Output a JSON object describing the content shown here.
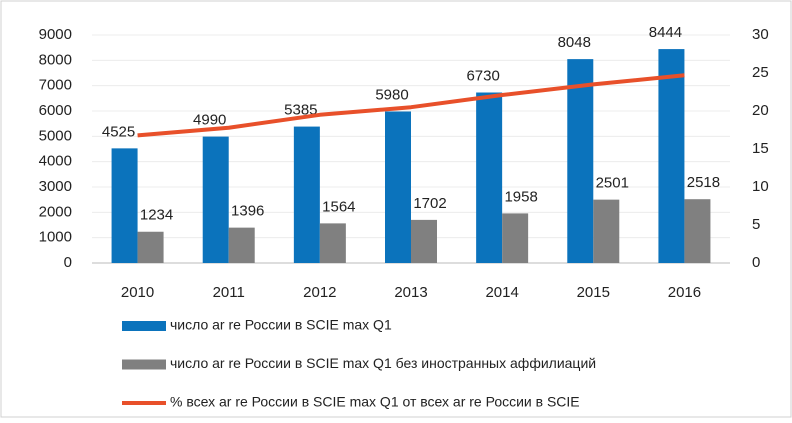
{
  "chart_data": {
    "type": "bar",
    "categories": [
      "2010",
      "2011",
      "2012",
      "2013",
      "2014",
      "2015",
      "2016"
    ],
    "series": [
      {
        "name": "число ar re России в SCIE max Q1",
        "color": "#0b73bc",
        "values": [
          4525,
          4990,
          5385,
          5980,
          6730,
          8048,
          8444
        ]
      },
      {
        "name": "число ar re России в SCIE max Q1 без иностранных аффилиаций",
        "color": "#808080",
        "values": [
          1234,
          1396,
          1564,
          1702,
          1958,
          2501,
          2518
        ]
      },
      {
        "name": "% всех ar re России в SCIE max Q1 от всех ar re России в SCIE",
        "color": "#e8502a",
        "type": "line",
        "axis": "y2",
        "values": [
          16.8,
          17.8,
          19.5,
          20.5,
          22.1,
          23.5,
          24.7
        ]
      }
    ],
    "ylim": [
      0,
      9000
    ],
    "yticks": [
      0,
      1000,
      2000,
      3000,
      4000,
      5000,
      6000,
      7000,
      8000,
      9000
    ],
    "y2lim": [
      0,
      30
    ],
    "y2ticks": [
      0,
      5,
      10,
      15,
      20,
      25,
      30
    ],
    "grid": true,
    "legend": "bottom"
  }
}
